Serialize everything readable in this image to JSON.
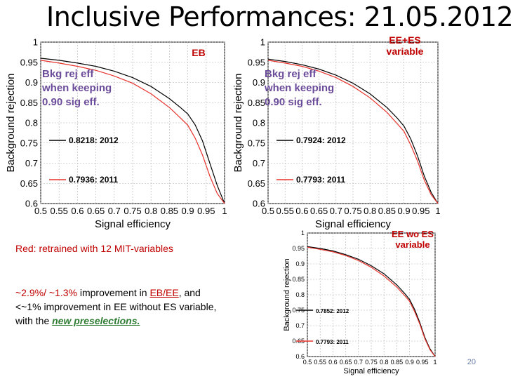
{
  "slide": {
    "title": "Inclusive Performances:  21.05.2012",
    "note_red": "Red:  retrained  with 12 MIT-variables",
    "note2_part1": "~2.9%/ ~1.3%",
    "note2_part2": " improvement in ",
    "note2_part3": "EB/EE",
    "note2_part4": ",  and",
    "note3": "<~1% improvement  in EE without ES variable,",
    "note4_part1": "with the ",
    "note4_part2": "new preselections.",
    "page_number": "20"
  },
  "colors": {
    "series_2012": "#000000",
    "series_2011": "#e8322c",
    "label_red": "#c00000",
    "grid": "#b0b0b0"
  },
  "chart_data": [
    {
      "type": "line",
      "panel_label": "EB",
      "annotation": "Bkg rej eff when keeping 0.90 sig eff.",
      "annotation_lines": [
        "Bkg rej eff",
        "when keeping",
        "0.90 sig eff."
      ],
      "xlabel": "Signal efficiency",
      "ylabel": "Background rejection",
      "xlim": [
        0.5,
        1.0
      ],
      "ylim": [
        0.6,
        1.0
      ],
      "xticks": [
        "0.5",
        "0.55",
        "0.6",
        "0.65",
        "0.7",
        "0.75",
        "0.8",
        "0.85",
        "0.9",
        "0.95",
        "1"
      ],
      "yticks": [
        "0.6",
        "0.65",
        "0.7",
        "0.75",
        "0.8",
        "0.85",
        "0.9",
        "0.95",
        "1"
      ],
      "grid": true,
      "series": [
        {
          "name": "0.8218: 2012",
          "color": "#000000",
          "x": [
            0.5,
            0.55,
            0.6,
            0.65,
            0.7,
            0.75,
            0.8,
            0.85,
            0.88,
            0.9,
            0.92,
            0.94,
            0.96,
            0.98,
            1.0
          ],
          "y": [
            0.96,
            0.955,
            0.948,
            0.94,
            0.928,
            0.912,
            0.89,
            0.86,
            0.838,
            0.822,
            0.795,
            0.755,
            0.7,
            0.645,
            0.6
          ]
        },
        {
          "name": "0.7936: 2011",
          "color": "#e8322c",
          "x": [
            0.5,
            0.55,
            0.6,
            0.65,
            0.7,
            0.75,
            0.8,
            0.85,
            0.88,
            0.9,
            0.92,
            0.94,
            0.96,
            0.98,
            1.0
          ],
          "y": [
            0.955,
            0.948,
            0.94,
            0.93,
            0.916,
            0.898,
            0.872,
            0.838,
            0.812,
            0.794,
            0.762,
            0.72,
            0.668,
            0.625,
            0.6
          ]
        }
      ]
    },
    {
      "type": "line",
      "panel_label": "EE+ES variable",
      "annotation": "Bkg rej eff when keeping 0.90 sig eff.",
      "annotation_lines": [
        "Bkg rej eff",
        "when keeping",
        "0.90 sig eff."
      ],
      "xlabel": "Signal efficiency",
      "ylabel": "Background rejection",
      "xlim": [
        0.5,
        1.0
      ],
      "ylim": [
        0.6,
        1.0
      ],
      "xticks": [
        "0.5",
        "0.55",
        "0.6",
        "0.65",
        "0.7",
        "0.75",
        "0.8",
        "0.85",
        "0.9",
        "0.95",
        "1"
      ],
      "yticks": [
        "0.6",
        "0.65",
        "0.7",
        "0.75",
        "0.8",
        "0.85",
        "0.9",
        "0.95",
        "1"
      ],
      "grid": true,
      "series": [
        {
          "name": "0.7924: 2012",
          "color": "#000000",
          "x": [
            0.5,
            0.55,
            0.6,
            0.65,
            0.7,
            0.75,
            0.8,
            0.85,
            0.88,
            0.9,
            0.92,
            0.94,
            0.96,
            0.98,
            1.0
          ],
          "y": [
            0.958,
            0.952,
            0.944,
            0.933,
            0.918,
            0.898,
            0.872,
            0.838,
            0.812,
            0.792,
            0.76,
            0.718,
            0.668,
            0.628,
            0.6
          ]
        },
        {
          "name": "0.7793: 2011",
          "color": "#e8322c",
          "x": [
            0.5,
            0.55,
            0.6,
            0.65,
            0.7,
            0.75,
            0.8,
            0.85,
            0.88,
            0.9,
            0.92,
            0.94,
            0.96,
            0.98,
            1.0
          ],
          "y": [
            0.955,
            0.948,
            0.94,
            0.928,
            0.912,
            0.89,
            0.862,
            0.826,
            0.798,
            0.779,
            0.745,
            0.705,
            0.658,
            0.622,
            0.6
          ]
        }
      ]
    },
    {
      "type": "line",
      "panel_label": "EE wo ES variable",
      "annotation": "",
      "annotation_lines": [],
      "xlabel": "Signal efficiency",
      "ylabel": "Background rejection",
      "xlim": [
        0.5,
        1.0
      ],
      "ylim": [
        0.6,
        1.0
      ],
      "xticks": [
        "0.5",
        "0.55",
        "0.6",
        "0.65",
        "0.7",
        "0.75",
        "0.8",
        "0.85",
        "0.9",
        "0.95",
        "1"
      ],
      "yticks": [
        "0.6",
        "0.65",
        "0.7",
        "0.75",
        "0.8",
        "0.85",
        "0.9",
        "0.95",
        "1"
      ],
      "grid": true,
      "series": [
        {
          "name": "0.7852: 2012",
          "color": "#000000",
          "x": [
            0.5,
            0.55,
            0.6,
            0.65,
            0.7,
            0.75,
            0.8,
            0.85,
            0.88,
            0.9,
            0.92,
            0.94,
            0.96,
            0.98,
            1.0
          ],
          "y": [
            0.956,
            0.95,
            0.942,
            0.93,
            0.915,
            0.894,
            0.868,
            0.832,
            0.805,
            0.785,
            0.752,
            0.71,
            0.662,
            0.625,
            0.6
          ]
        },
        {
          "name": "0.7793: 2011",
          "color": "#e8322c",
          "x": [
            0.5,
            0.55,
            0.6,
            0.65,
            0.7,
            0.75,
            0.8,
            0.85,
            0.88,
            0.9,
            0.92,
            0.94,
            0.96,
            0.98,
            1.0
          ],
          "y": [
            0.954,
            0.947,
            0.939,
            0.927,
            0.911,
            0.889,
            0.861,
            0.825,
            0.798,
            0.779,
            0.745,
            0.705,
            0.658,
            0.622,
            0.6
          ]
        }
      ]
    }
  ]
}
